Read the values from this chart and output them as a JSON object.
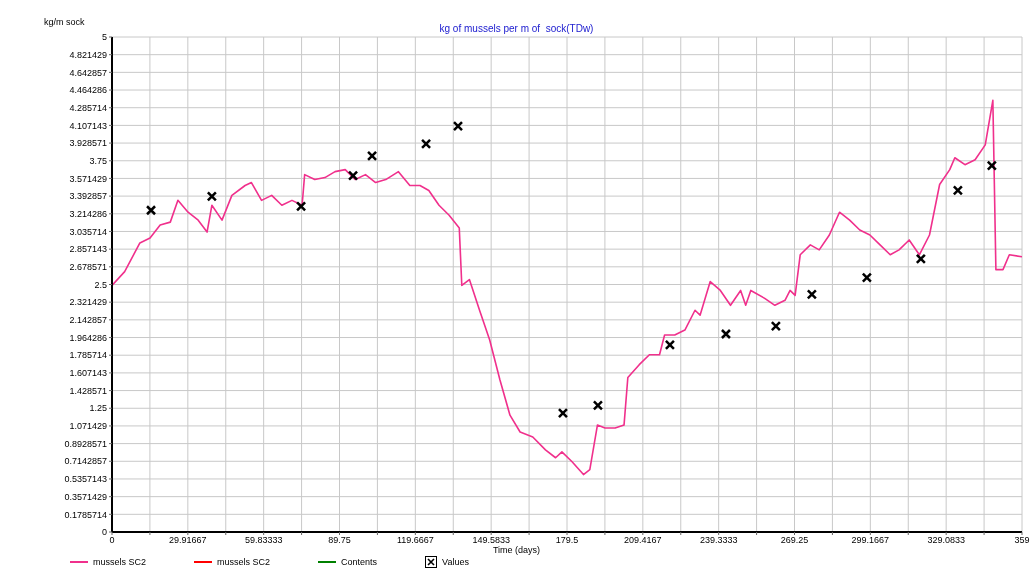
{
  "chart_data": {
    "type": "line",
    "title": "kg of mussels per m of  sock(TDw)",
    "ylabel": "kg/m sock",
    "xlabel": "Time (days)",
    "xlim": [
      0,
      359
    ],
    "ylim": [
      0,
      5
    ],
    "xticks": [
      0,
      {
        "value": 14.95833,
        "label": null
      },
      29.91667,
      {
        "value": 44.875,
        "label": null
      },
      59.83333,
      {
        "value": 74.79167,
        "label": null
      },
      89.75,
      {
        "value": 104.7083,
        "label": null
      },
      119.6667,
      {
        "value": 134.625,
        "label": null
      },
      149.5833,
      {
        "value": 164.5417,
        "label": null
      },
      179.5,
      {
        "value": 194.4583,
        "label": null
      },
      209.4167,
      {
        "value": 224.375,
        "label": null
      },
      239.3333,
      {
        "value": 254.2917,
        "label": null
      },
      269.25,
      {
        "value": 284.2083,
        "label": null
      },
      299.1667,
      {
        "value": 314.125,
        "label": null
      },
      329.0833,
      {
        "value": 344.0417,
        "label": null
      },
      359
    ],
    "yticks": [
      0,
      0.1785714,
      0.3571429,
      0.5357143,
      0.7142857,
      0.8928571,
      1.071429,
      1.25,
      1.428571,
      1.607143,
      1.785714,
      1.964286,
      2.142857,
      2.321429,
      2.5,
      2.678571,
      2.857143,
      3.035714,
      3.214286,
      3.392857,
      3.571429,
      3.75,
      3.928571,
      4.107143,
      4.285714,
      4.464286,
      4.642857,
      4.821429,
      5
    ],
    "grid": true,
    "legend": "bottom",
    "series": [
      {
        "name": "mussels SC2",
        "type": "line",
        "color": "#f0308c",
        "marker": "none",
        "x": [
          0,
          5,
          11,
          15,
          19,
          23,
          26,
          30,
          34,
          37.5,
          39.4,
          43.4,
          47.3,
          52.5,
          55,
          59,
          63,
          67,
          71,
          75,
          76,
          80,
          84,
          88,
          92,
          96,
          100,
          104,
          108,
          113,
          117.5,
          121.5,
          125,
          129,
          133,
          137,
          138,
          141,
          145,
          149,
          153,
          157,
          161,
          166,
          171,
          175,
          177.5,
          181.5,
          186,
          188.5,
          191.5,
          194.5,
          198.5,
          202,
          203.5,
          208,
          212,
          216,
          218,
          222,
          226,
          230,
          232,
          236,
          240,
          244,
          248,
          250,
          252,
          257.5,
          261.5,
          265.5,
          267.5,
          269.5,
          271.5,
          275.5,
          279,
          283,
          287,
          291,
          295,
          299,
          303,
          307,
          310.5,
          314.5,
          318.5,
          322.5,
          326.5,
          330.5,
          332.5,
          336.5,
          340.5,
          344.5,
          347.5,
          348.7,
          351.5,
          354,
          359
        ],
        "values": [
          2.49,
          2.63,
          2.92,
          2.97,
          3.1,
          3.13,
          3.35,
          3.23,
          3.15,
          3.03,
          3.3,
          3.15,
          3.4,
          3.5,
          3.53,
          3.35,
          3.4,
          3.3,
          3.35,
          3.3,
          3.61,
          3.56,
          3.58,
          3.64,
          3.66,
          3.56,
          3.61,
          3.53,
          3.56,
          3.64,
          3.5,
          3.5,
          3.45,
          3.3,
          3.2,
          3.07,
          2.49,
          2.55,
          2.24,
          1.94,
          1.54,
          1.18,
          1.01,
          0.96,
          0.83,
          0.75,
          0.81,
          0.71,
          0.58,
          0.63,
          1.08,
          1.05,
          1.05,
          1.08,
          1.56,
          1.69,
          1.79,
          1.79,
          1.99,
          1.99,
          2.04,
          2.24,
          2.19,
          2.53,
          2.44,
          2.29,
          2.44,
          2.29,
          2.44,
          2.36,
          2.29,
          2.34,
          2.44,
          2.39,
          2.8,
          2.9,
          2.85,
          3.0,
          3.23,
          3.15,
          3.05,
          3.0,
          2.9,
          2.8,
          2.85,
          2.95,
          2.8,
          3.0,
          3.51,
          3.66,
          3.78,
          3.71,
          3.76,
          3.91,
          4.36,
          2.65,
          2.65,
          2.8,
          2.78
        ]
      },
      {
        "name": "mussels SC2",
        "type": "line",
        "color": "#ff0000",
        "marker": "none"
      },
      {
        "name": "Contents",
        "type": "line",
        "color": "#008000",
        "marker": "none"
      },
      {
        "name": "Values",
        "type": "scatter",
        "color": "#000000",
        "marker": "cross",
        "x": [
          15.4,
          39.4,
          74.6,
          95.1,
          102.6,
          123.9,
          136.5,
          177.9,
          191.7,
          220.1,
          242.2,
          261.9,
          276.1,
          297.8,
          319.1,
          333.7,
          347.1
        ],
        "values": [
          3.25,
          3.39,
          3.29,
          3.6,
          3.8,
          3.92,
          4.1,
          1.2,
          1.28,
          1.89,
          2.0,
          2.08,
          2.4,
          2.57,
          2.76,
          3.45,
          3.7
        ]
      }
    ]
  }
}
